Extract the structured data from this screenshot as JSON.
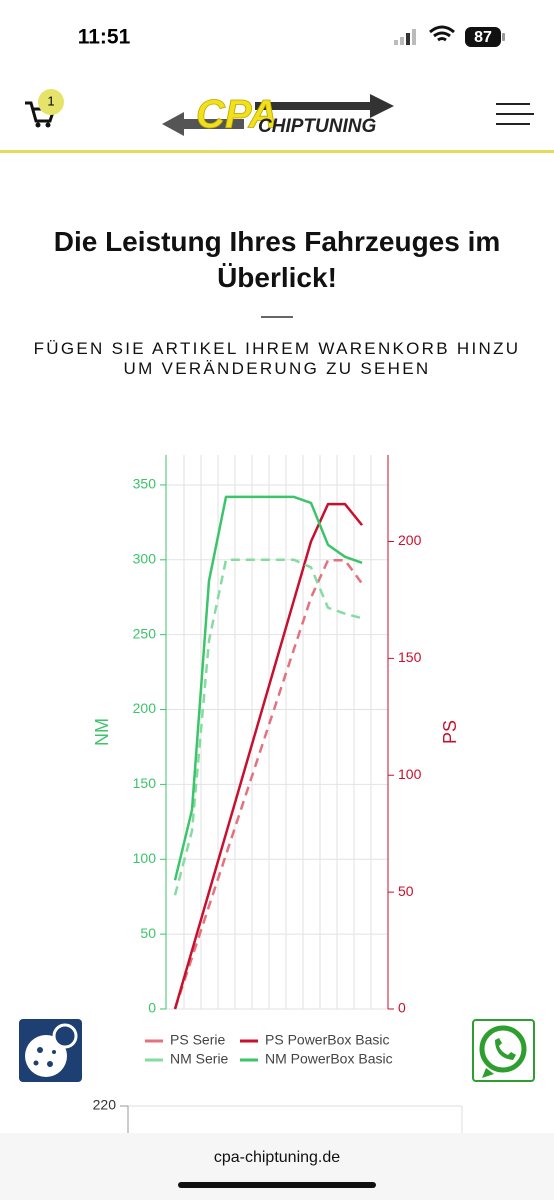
{
  "status": {
    "time": "11:51",
    "battery": "87"
  },
  "cart": {
    "count": "1"
  },
  "logo": {
    "brand": "CPA",
    "name": "CHIPTUNING"
  },
  "heading": "Die Leistung Ihres Fahrzeuges im Überlick!",
  "subheading": "FÜGEN SIE ARTIKEL IHREM WARENKORB HINZU UM VERÄNDERUNG ZU SEHEN",
  "chart_data": {
    "type": "line",
    "categories": [
      null,
      null,
      null,
      null,
      null,
      null,
      null,
      null,
      null,
      null,
      null,
      null
    ],
    "ylabel": "NM",
    "y2label": "PS",
    "ylim": [
      0,
      370
    ],
    "yticks": [
      0,
      50,
      100,
      150,
      200,
      250,
      300,
      350
    ],
    "y2lim": [
      0,
      237
    ],
    "y2ticks": [
      0,
      50,
      100,
      150,
      200
    ],
    "grid": true,
    "series": [
      {
        "name": "PS Serie",
        "color": "#e5707e",
        "dashed": true,
        "axis": "y2",
        "values": [
          0,
          22,
          44,
          66,
          88,
          110,
          132,
          154,
          176,
          192,
          192,
          182
        ]
      },
      {
        "name": "PS PowerBox Basic",
        "color": "#c8102e",
        "dashed": false,
        "axis": "y2",
        "values": [
          0,
          25,
          50,
          75,
          100,
          125,
          150,
          175,
          200,
          216,
          216,
          207
        ]
      },
      {
        "name": "NM Serie",
        "color": "#86dca0",
        "dashed": true,
        "axis": "y",
        "values": [
          76,
          119,
          246,
          300,
          300,
          300,
          300,
          300,
          295,
          268,
          264,
          261
        ]
      },
      {
        "name": "NM PowerBox Basic",
        "color": "#3cc46a",
        "dashed": false,
        "axis": "y",
        "values": [
          86,
          133,
          286,
          342,
          342,
          342,
          342,
          342,
          338,
          310,
          302,
          298
        ]
      }
    ]
  },
  "next_chart": {
    "ytick": "220"
  },
  "footer": {
    "url": "cpa-chiptuning.de"
  }
}
